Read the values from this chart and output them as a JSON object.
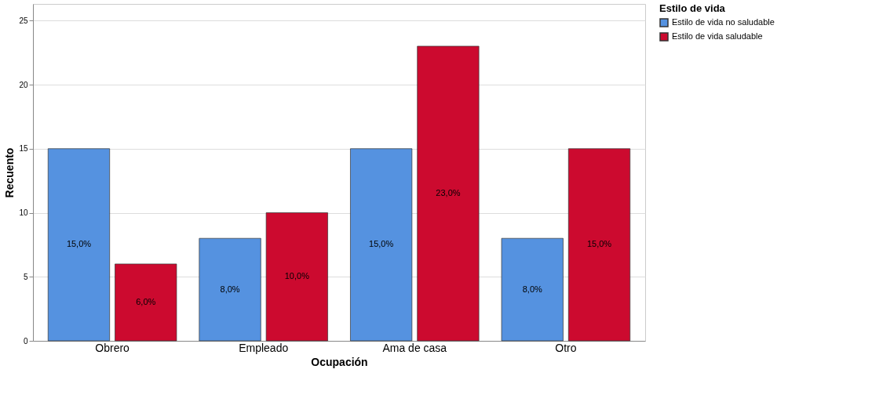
{
  "chart_data": {
    "type": "bar",
    "xlabel": "Ocupación",
    "ylabel": "Recuento",
    "legend_title": "Estilo de vida",
    "categories": [
      "Obrero",
      "Empleado",
      "Ama de casa",
      "Otro"
    ],
    "series": [
      {
        "name": "Estilo de vida no saludable",
        "color": "#5592e0",
        "values": [
          15,
          8,
          15,
          8
        ],
        "value_labels": [
          "15,0%",
          "8,0%",
          "15,0%",
          "8,0%"
        ]
      },
      {
        "name": "Estilo de vida saludable",
        "color": "#cc0a2f",
        "values": [
          6,
          10,
          23,
          15
        ],
        "value_labels": [
          "6,0%",
          "10,0%",
          "23,0%",
          "15,0%"
        ]
      }
    ],
    "ylim": [
      0,
      26.3
    ],
    "yticks": [
      0,
      5,
      10,
      15,
      20,
      25
    ],
    "grid": "y",
    "legend": "top right"
  }
}
